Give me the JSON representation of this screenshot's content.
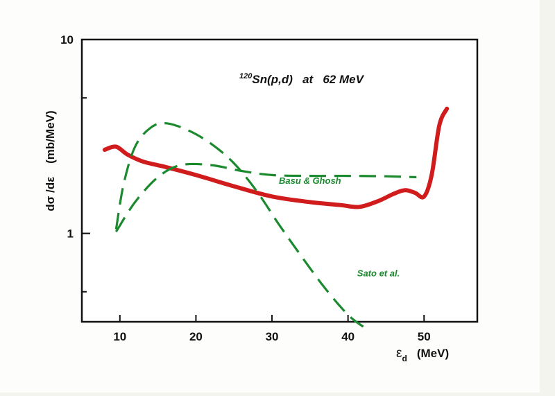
{
  "chart_data": {
    "type": "line",
    "title_sup": "120",
    "title_main": "Sn(p,d)   at   62 MeV",
    "ylabel": "dσ /dε    (mb/MeV)",
    "xlabel_symbol": "ε",
    "xlabel_sub": "d",
    "xlabel_unit": "(MeV)",
    "x_scale": "linear",
    "y_scale": "log",
    "xlim": [
      5,
      57
    ],
    "ylim": [
      0.35,
      10
    ],
    "x_ticks": [
      10,
      20,
      30,
      40,
      50
    ],
    "x_tick_labels": [
      "10",
      "20",
      "30",
      "40",
      "50"
    ],
    "y_ticks": [
      1,
      10
    ],
    "y_tick_labels": [
      "1",
      "10"
    ],
    "y_minor_ticks": [
      0.5,
      5
    ],
    "grid": false,
    "colors": {
      "data": "#d01c1c",
      "theory": "#1b8a2e",
      "axes": "#111111",
      "background": "#ffffff"
    },
    "series": [
      {
        "style": "solid-thick-red",
        "x": [
          8,
          9.5,
          11,
          13,
          16,
          20,
          25,
          30,
          35,
          39,
          41.5,
          44,
          46,
          47.5,
          48.8,
          50,
          51,
          52,
          53
        ],
        "y": [
          2.7,
          2.8,
          2.55,
          2.35,
          2.2,
          2.0,
          1.75,
          1.55,
          1.45,
          1.4,
          1.37,
          1.47,
          1.6,
          1.67,
          1.62,
          1.55,
          2.0,
          3.6,
          4.4
        ]
      },
      {
        "name": "Basu & Ghosh",
        "style": "dashed-green",
        "x": [
          9.5,
          12,
          15,
          18,
          22,
          26,
          30,
          35,
          40,
          45,
          49
        ],
        "y": [
          1.02,
          1.45,
          1.95,
          2.25,
          2.25,
          2.1,
          2.0,
          1.98,
          1.98,
          1.97,
          1.95
        ]
      },
      {
        "name": "Sato et al.",
        "style": "dashed-green",
        "x": [
          9.5,
          10.5,
          12,
          14,
          16,
          19,
          22,
          25,
          28,
          31,
          34,
          37,
          40,
          42
        ],
        "y": [
          1.05,
          1.8,
          2.8,
          3.5,
          3.7,
          3.4,
          2.9,
          2.3,
          1.65,
          1.1,
          0.75,
          0.52,
          0.38,
          0.33
        ]
      }
    ],
    "annotations": [
      {
        "text": "Basu & Ghosh",
        "x": 35,
        "y": 1.8
      },
      {
        "text": "Sato et al.",
        "x": 44,
        "y": 0.6
      }
    ]
  }
}
